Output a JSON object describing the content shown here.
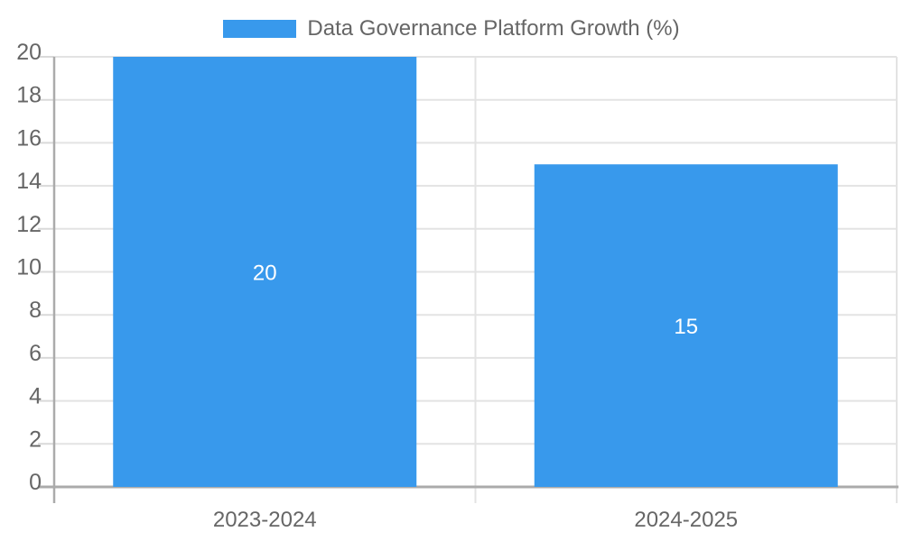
{
  "chart_data": {
    "type": "bar",
    "title": "Data Governance Platform Growth (%)",
    "categories": [
      "2023-2024",
      "2024-2025"
    ],
    "values": [
      20,
      15
    ],
    "xlabel": "",
    "ylabel": "",
    "ylim": [
      0,
      20
    ],
    "ytick_step": 2,
    "yticks": [
      0,
      2,
      4,
      6,
      8,
      10,
      12,
      14,
      16,
      18,
      20
    ],
    "grid": true,
    "legend_position": "top",
    "bar_color": "#3899EC",
    "text_color": "#666666",
    "grid_color": "#e3e3e3",
    "tick_color": "#d9d9d9",
    "axis_color": "#ababab",
    "data_label_color": "#ffffff"
  }
}
